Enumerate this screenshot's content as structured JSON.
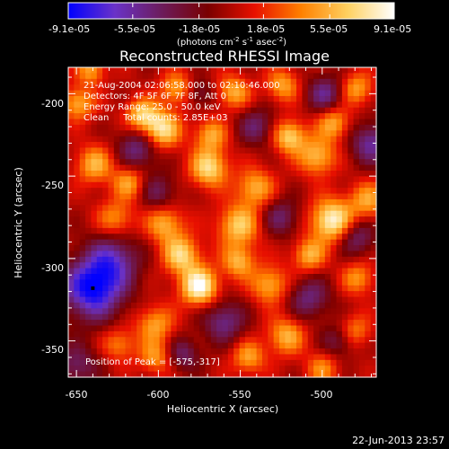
{
  "colorbar": {
    "tick_labels": [
      "-9.1e-05",
      "-5.5e-05",
      "-1.8e-05",
      "1.8e-05",
      "5.5e-05",
      "9.1e-05"
    ],
    "tick_values": [
      -9.1e-05,
      -5.5e-05,
      -1.8e-05,
      1.8e-05,
      5.5e-05,
      9.1e-05
    ],
    "units_prefix": "(photons cm",
    "units_exp1": "-2",
    "units_mid": " s",
    "units_exp2": "-1",
    "units_mid2": " asec",
    "units_exp3": "-2",
    "units_suffix": ")",
    "colors": [
      "#0000ff",
      "#6a32c8",
      "#6c1c5c",
      "#7a0000",
      "#e81000",
      "#ff8000",
      "#ffd060",
      "#ffffff"
    ]
  },
  "annotations": {
    "time": "21-Aug-2004 02:06:58.000 to 02:10:46.000",
    "detectors": "Detectors: 4F 5F 6F 7F 8F, Att 0",
    "energy": "Energy Range: 25.0 - 50.0 keV",
    "clean": "Clean     Total counts: 2.85E+03",
    "peak": "Position of Peak = [-575,-317]"
  },
  "footer": {
    "timestamp": "22-Jun-2013 23:57"
  },
  "chart_data": {
    "type": "heatmap",
    "title": "Reconstructed RHESSI Image",
    "xlabel": "Heliocentric X (arcsec)",
    "ylabel": "Heliocentric Y (arcsec)",
    "xlim": [
      -655,
      -467
    ],
    "ylim": [
      -372,
      -184
    ],
    "x_ticks": [
      -650,
      -600,
      -550,
      -500
    ],
    "x_tick_labels": [
      "-650",
      "-600",
      "-550",
      "-500"
    ],
    "y_ticks": [
      -350,
      -300,
      -250,
      -200
    ],
    "y_tick_labels": [
      "-350",
      "-300",
      "-250",
      "-200"
    ],
    "value_range": [
      -9.1e-05,
      9.1e-05
    ],
    "peak": [
      -575,
      -317
    ],
    "marker": [
      -640,
      -318
    ],
    "sources": [
      {
        "x": -575,
        "y": -317,
        "a": 1.0,
        "s": 8
      },
      {
        "x": -494,
        "y": -277,
        "a": 0.95,
        "s": 9
      },
      {
        "x": -569,
        "y": -245,
        "a": 0.8,
        "s": 8
      },
      {
        "x": -598,
        "y": -222,
        "a": 0.85,
        "s": 8
      },
      {
        "x": -610,
        "y": -213,
        "a": 0.7,
        "s": 7
      },
      {
        "x": -551,
        "y": -280,
        "a": 0.7,
        "s": 9
      },
      {
        "x": -541,
        "y": -257,
        "a": 0.6,
        "s": 8
      },
      {
        "x": -520,
        "y": -226,
        "a": 0.75,
        "s": 7
      },
      {
        "x": -503,
        "y": -238,
        "a": 0.65,
        "s": 8
      },
      {
        "x": -493,
        "y": -218,
        "a": 0.6,
        "s": 7
      },
      {
        "x": -479,
        "y": -197,
        "a": 0.55,
        "s": 7
      },
      {
        "x": -524,
        "y": -195,
        "a": 0.55,
        "s": 7
      },
      {
        "x": -554,
        "y": -199,
        "a": 0.6,
        "s": 7
      },
      {
        "x": -589,
        "y": -197,
        "a": 0.55,
        "s": 7
      },
      {
        "x": -639,
        "y": -243,
        "a": 0.6,
        "s": 8
      },
      {
        "x": -618,
        "y": -254,
        "a": 0.55,
        "s": 7
      },
      {
        "x": -626,
        "y": -276,
        "a": 0.5,
        "s": 8
      },
      {
        "x": -596,
        "y": -279,
        "a": 0.6,
        "s": 8
      },
      {
        "x": -586,
        "y": -298,
        "a": 0.75,
        "s": 8
      },
      {
        "x": -551,
        "y": -302,
        "a": 0.6,
        "s": 7
      },
      {
        "x": -532,
        "y": -316,
        "a": 0.6,
        "s": 8
      },
      {
        "x": -508,
        "y": -298,
        "a": 0.6,
        "s": 7
      },
      {
        "x": -472,
        "y": -265,
        "a": 0.55,
        "s": 8
      },
      {
        "x": -478,
        "y": -312,
        "a": 0.5,
        "s": 7
      },
      {
        "x": -522,
        "y": -347,
        "a": 0.6,
        "s": 8
      },
      {
        "x": -545,
        "y": -360,
        "a": 0.55,
        "s": 7
      },
      {
        "x": -602,
        "y": -340,
        "a": 0.55,
        "s": 8
      },
      {
        "x": -624,
        "y": -352,
        "a": 0.45,
        "s": 7
      },
      {
        "x": -602,
        "y": -360,
        "a": 0.5,
        "s": 7
      },
      {
        "x": -500,
        "y": -367,
        "a": 0.45,
        "s": 7
      },
      {
        "x": -480,
        "y": -344,
        "a": 0.45,
        "s": 7
      },
      {
        "x": -649,
        "y": -206,
        "a": 0.6,
        "s": 7
      },
      {
        "x": -641,
        "y": -186,
        "a": 0.55,
        "s": 6
      },
      {
        "x": -568,
        "y": -225,
        "a": 0.55,
        "s": 7
      },
      {
        "x": -640,
        "y": -318,
        "a": -1.0,
        "s": 13
      },
      {
        "x": -627,
        "y": -300,
        "a": -0.55,
        "s": 11
      },
      {
        "x": -612,
        "y": -233,
        "a": -0.55,
        "s": 9
      },
      {
        "x": -540,
        "y": -220,
        "a": -0.45,
        "s": 8
      },
      {
        "x": -498,
        "y": -200,
        "a": -0.55,
        "s": 8
      },
      {
        "x": -470,
        "y": -230,
        "a": -0.6,
        "s": 9
      },
      {
        "x": -479,
        "y": -287,
        "a": -0.5,
        "s": 8
      },
      {
        "x": -508,
        "y": -324,
        "a": -0.5,
        "s": 9
      },
      {
        "x": -560,
        "y": -338,
        "a": -0.55,
        "s": 9
      },
      {
        "x": -585,
        "y": -358,
        "a": -0.45,
        "s": 7
      },
      {
        "x": -525,
        "y": -275,
        "a": -0.45,
        "s": 8
      },
      {
        "x": -600,
        "y": -260,
        "a": -0.4,
        "s": 8
      },
      {
        "x": -575,
        "y": -200,
        "a": -0.35,
        "s": 6
      },
      {
        "x": -490,
        "y": -350,
        "a": -0.4,
        "s": 7
      },
      {
        "x": -650,
        "y": -365,
        "a": -0.45,
        "s": 9
      }
    ]
  }
}
